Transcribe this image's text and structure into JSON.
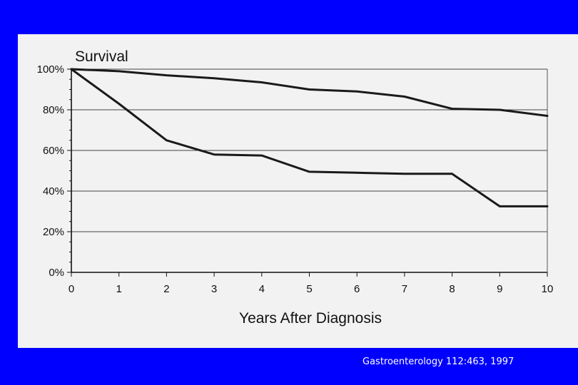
{
  "citation": "Gastroenterology 112:463, 1997",
  "chart_data": {
    "type": "line",
    "title": "Survival",
    "xlabel": "Years After Diagnosis",
    "ylabel": "",
    "xlim": [
      0,
      10
    ],
    "ylim": [
      0,
      100
    ],
    "x_ticks": [
      "0",
      "1",
      "2",
      "3",
      "4",
      "5",
      "6",
      "7",
      "8",
      "9",
      "10"
    ],
    "y_ticks": [
      "0%",
      "20%",
      "40%",
      "60%",
      "80%",
      "100%"
    ],
    "grid": true,
    "line_color": "#1a1a1a",
    "series": [
      {
        "x": [
          0,
          1,
          2,
          3,
          4,
          5,
          6,
          7,
          8,
          9,
          10
        ],
        "values": [
          100,
          99,
          97,
          95.5,
          93.5,
          90,
          89,
          86.5,
          80.5,
          80,
          77
        ]
      },
      {
        "x": [
          0,
          1,
          2,
          3,
          4,
          5,
          6,
          7,
          8,
          9,
          10
        ],
        "values": [
          100,
          83,
          65,
          58,
          57.5,
          49.5,
          49,
          48.5,
          48.5,
          32.5,
          32.5
        ]
      }
    ]
  }
}
